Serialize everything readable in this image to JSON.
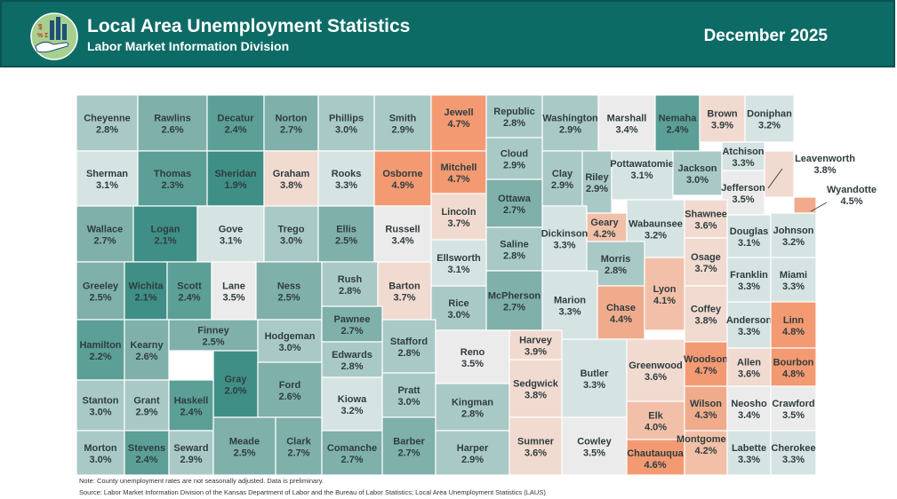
{
  "header": {
    "title": "Local Area Unemployment Statistics",
    "subtitle": "Labor Market Information Division",
    "period": "December 2025",
    "bg_color": "#0d6b66"
  },
  "logo": {
    "icon": "hand-holding-chart-icon"
  },
  "legend_colors": {
    "low": "#3f8f86",
    "mid_low": "#7fb0aa",
    "mid": "#cfe0e0",
    "neutral": "#ecebeb",
    "mid_high": "#f0d2c6",
    "high": "#eea386",
    "highest": "#f39a73"
  },
  "counties": [
    {
      "name": "Cheyenne",
      "rate": "2.8%"
    },
    {
      "name": "Rawlins",
      "rate": "2.6%"
    },
    {
      "name": "Decatur",
      "rate": "2.4%"
    },
    {
      "name": "Norton",
      "rate": "2.7%"
    },
    {
      "name": "Phillips",
      "rate": "3.0%"
    },
    {
      "name": "Smith",
      "rate": "2.9%"
    },
    {
      "name": "Jewell",
      "rate": "4.7%"
    },
    {
      "name": "Republic",
      "rate": "2.8%"
    },
    {
      "name": "Washington",
      "rate": "2.9%"
    },
    {
      "name": "Marshall",
      "rate": "3.4%"
    },
    {
      "name": "Nemaha",
      "rate": "2.4%"
    },
    {
      "name": "Brown",
      "rate": "3.9%"
    },
    {
      "name": "Doniphan",
      "rate": "3.2%"
    },
    {
      "name": "Sherman",
      "rate": "3.1%"
    },
    {
      "name": "Thomas",
      "rate": "2.3%"
    },
    {
      "name": "Sheridan",
      "rate": "1.9%"
    },
    {
      "name": "Graham",
      "rate": "3.8%"
    },
    {
      "name": "Rooks",
      "rate": "3.3%"
    },
    {
      "name": "Osborne",
      "rate": "4.9%"
    },
    {
      "name": "Mitchell",
      "rate": "4.7%"
    },
    {
      "name": "Cloud",
      "rate": "2.9%"
    },
    {
      "name": "Clay",
      "rate": "2.9%"
    },
    {
      "name": "Riley",
      "rate": "2.9%"
    },
    {
      "name": "Pottawatomie",
      "rate": "3.1%"
    },
    {
      "name": "Jackson",
      "rate": "3.0%"
    },
    {
      "name": "Atchison",
      "rate": "3.3%"
    },
    {
      "name": "Leavenworth",
      "rate": "3.8%"
    },
    {
      "name": "Jefferson",
      "rate": "3.5%"
    },
    {
      "name": "Wyandotte",
      "rate": "4.5%"
    },
    {
      "name": "Wallace",
      "rate": "2.7%"
    },
    {
      "name": "Logan",
      "rate": "2.1%"
    },
    {
      "name": "Gove",
      "rate": "3.1%"
    },
    {
      "name": "Trego",
      "rate": "3.0%"
    },
    {
      "name": "Ellis",
      "rate": "2.5%"
    },
    {
      "name": "Russell",
      "rate": "3.4%"
    },
    {
      "name": "Lincoln",
      "rate": "3.7%"
    },
    {
      "name": "Ottawa",
      "rate": "2.7%"
    },
    {
      "name": "Geary",
      "rate": "4.2%"
    },
    {
      "name": "Wabaunsee",
      "rate": "3.2%"
    },
    {
      "name": "Shawnee",
      "rate": "3.6%"
    },
    {
      "name": "Douglas",
      "rate": "3.1%"
    },
    {
      "name": "Johnson",
      "rate": "3.2%"
    },
    {
      "name": "Saline",
      "rate": "2.8%"
    },
    {
      "name": "Dickinson",
      "rate": "3.3%"
    },
    {
      "name": "Morris",
      "rate": "2.8%"
    },
    {
      "name": "Ellsworth",
      "rate": "3.1%"
    },
    {
      "name": "Osage",
      "rate": "3.7%"
    },
    {
      "name": "Franklin",
      "rate": "3.3%"
    },
    {
      "name": "Miami",
      "rate": "3.3%"
    },
    {
      "name": "Greeley",
      "rate": "2.5%"
    },
    {
      "name": "Wichita",
      "rate": "2.1%"
    },
    {
      "name": "Scott",
      "rate": "2.4%"
    },
    {
      "name": "Lane",
      "rate": "3.5%"
    },
    {
      "name": "Ness",
      "rate": "2.5%"
    },
    {
      "name": "Rush",
      "rate": "2.8%"
    },
    {
      "name": "Barton",
      "rate": "3.7%"
    },
    {
      "name": "Rice",
      "rate": "3.0%"
    },
    {
      "name": "McPherson",
      "rate": "2.7%"
    },
    {
      "name": "Marion",
      "rate": "3.3%"
    },
    {
      "name": "Chase",
      "rate": "4.4%"
    },
    {
      "name": "Lyon",
      "rate": "4.1%"
    },
    {
      "name": "Coffey",
      "rate": "3.8%"
    },
    {
      "name": "Anderson",
      "rate": "3.3%"
    },
    {
      "name": "Linn",
      "rate": "4.8%"
    },
    {
      "name": "Hamilton",
      "rate": "2.2%"
    },
    {
      "name": "Kearny",
      "rate": "2.6%"
    },
    {
      "name": "Finney",
      "rate": "2.5%"
    },
    {
      "name": "Hodgeman",
      "rate": "3.0%"
    },
    {
      "name": "Pawnee",
      "rate": "2.7%"
    },
    {
      "name": "Stafford",
      "rate": "2.8%"
    },
    {
      "name": "Reno",
      "rate": "3.5%"
    },
    {
      "name": "Harvey",
      "rate": "3.9%"
    },
    {
      "name": "Butler",
      "rate": "3.3%"
    },
    {
      "name": "Greenwood",
      "rate": "3.6%"
    },
    {
      "name": "Woodson",
      "rate": "4.7%"
    },
    {
      "name": "Allen",
      "rate": "3.6%"
    },
    {
      "name": "Bourbon",
      "rate": "4.8%"
    },
    {
      "name": "Edwards",
      "rate": "2.8%"
    },
    {
      "name": "Gray",
      "rate": "2.0%"
    },
    {
      "name": "Ford",
      "rate": "2.6%"
    },
    {
      "name": "Stanton",
      "rate": "3.0%"
    },
    {
      "name": "Grant",
      "rate": "2.9%"
    },
    {
      "name": "Haskell",
      "rate": "2.4%"
    },
    {
      "name": "Kiowa",
      "rate": "3.2%"
    },
    {
      "name": "Pratt",
      "rate": "3.0%"
    },
    {
      "name": "Kingman",
      "rate": "2.8%"
    },
    {
      "name": "Sedgwick",
      "rate": "3.8%"
    },
    {
      "name": "Elk",
      "rate": "4.0%"
    },
    {
      "name": "Wilson",
      "rate": "4.3%"
    },
    {
      "name": "Neosho",
      "rate": "3.4%"
    },
    {
      "name": "Crawford",
      "rate": "3.5%"
    },
    {
      "name": "Morton",
      "rate": "3.0%"
    },
    {
      "name": "Stevens",
      "rate": "2.4%"
    },
    {
      "name": "Seward",
      "rate": "2.9%"
    },
    {
      "name": "Meade",
      "rate": "2.5%"
    },
    {
      "name": "Clark",
      "rate": "2.7%"
    },
    {
      "name": "Comanche",
      "rate": "2.7%"
    },
    {
      "name": "Barber",
      "rate": "2.7%"
    },
    {
      "name": "Harper",
      "rate": "2.9%"
    },
    {
      "name": "Sumner",
      "rate": "3.6%"
    },
    {
      "name": "Cowley",
      "rate": "3.5%"
    },
    {
      "name": "Chautauqua",
      "rate": "4.6%"
    },
    {
      "name": "Montgomery",
      "rate": "4.2%"
    },
    {
      "name": "Labette",
      "rate": "3.3%"
    },
    {
      "name": "Cherokee",
      "rate": "3.3%"
    }
  ],
  "footer": {
    "note": "Note: County unemployment rates are not seasonally adjusted. Data is preliminary.",
    "source": "Source: Labor Market Information Division of the Kansas Department of Labor and the Bureau of Labor Statistics; Local Area Unemployment Statistics (LAUS)"
  }
}
